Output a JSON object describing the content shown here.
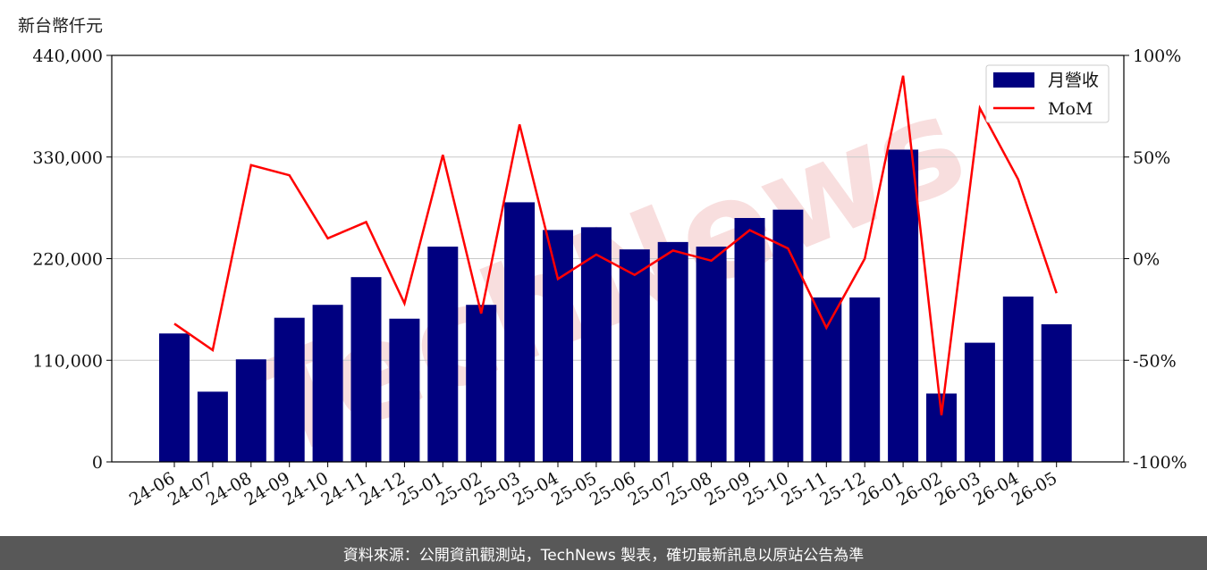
{
  "chart_data": {
    "type": "bar+line",
    "y_unit_label": "新台幣仟元",
    "categories": [
      "24-06",
      "24-07",
      "24-08",
      "24-09",
      "24-10",
      "24-11",
      "24-12",
      "25-01",
      "25-02",
      "25-03",
      "25-04",
      "25-05",
      "25-06",
      "25-07",
      "25-08",
      "25-09",
      "25-10",
      "25-11",
      "25-12",
      "26-01",
      "26-02",
      "26-03",
      "26-04",
      "26-05"
    ],
    "series": [
      {
        "name": "月營收",
        "kind": "bar",
        "axis": "left",
        "color": "#000080",
        "values": [
          139000,
          76000,
          111000,
          156000,
          170000,
          200000,
          155000,
          233000,
          170000,
          281000,
          251000,
          254000,
          230000,
          238000,
          233000,
          264000,
          273000,
          178000,
          178000,
          338000,
          74000,
          129000,
          179000,
          149000
        ]
      },
      {
        "name": "MoM",
        "kind": "line",
        "axis": "right",
        "color": "#ff0000",
        "values": [
          -32,
          -45,
          46,
          41,
          10,
          18,
          -22,
          51,
          -27,
          66,
          -10,
          2,
          -8,
          4,
          -1,
          14,
          5,
          -34,
          0,
          90,
          -77,
          74,
          39,
          -17
        ]
      }
    ],
    "y_left": {
      "ylim": [
        0,
        440000
      ],
      "ticks": [
        "0",
        "110,000",
        "220,000",
        "330,000",
        "440,000"
      ]
    },
    "y_right": {
      "ylim": [
        -100,
        100
      ],
      "ticks": [
        "-100%",
        "-50%",
        "0%",
        "50%",
        "100%"
      ]
    },
    "grid": "horizontal",
    "legend_position": "top-right"
  },
  "watermark": "TechNews",
  "footer": {
    "text": "資料來源：公開資訊觀測站，TechNews 製表，確切最新訊息以原站公告為準"
  }
}
